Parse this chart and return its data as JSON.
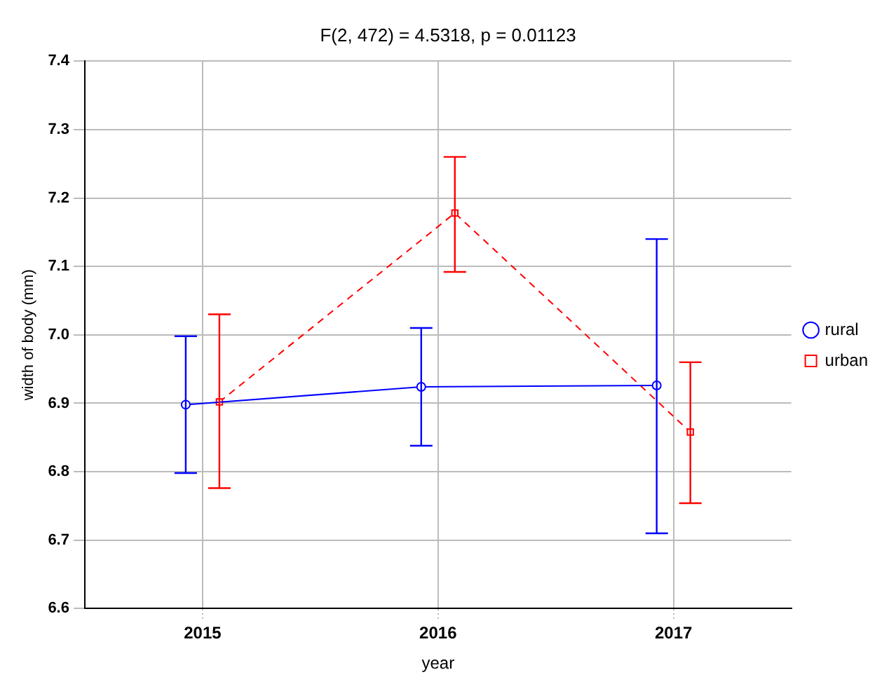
{
  "chart_data": {
    "type": "line",
    "title": "F(2, 472) = 4.5318, p = 0.01123",
    "xlabel": "year",
    "ylabel": "width of body (mm)",
    "categories": [
      "2015",
      "2016",
      "2017"
    ],
    "series": [
      {
        "name": "rural",
        "color": "#0000ff",
        "marker": "circle",
        "line_style": "solid",
        "values": [
          6.898,
          6.924,
          6.926
        ],
        "errors": [
          [
            6.798,
            6.998
          ],
          [
            6.838,
            7.01
          ],
          [
            6.71,
            7.14
          ]
        ]
      },
      {
        "name": "urban",
        "color": "#ff0000",
        "marker": "square",
        "line_style": "dashed",
        "values": [
          6.902,
          7.178,
          6.858
        ],
        "errors": [
          [
            6.776,
            7.03
          ],
          [
            7.092,
            7.26
          ],
          [
            6.754,
            6.96
          ]
        ]
      }
    ],
    "ylim": [
      6.6,
      7.4
    ],
    "yticks": [
      {
        "value": 6.6,
        "label": "6.6"
      },
      6.7,
      6.8,
      6.9,
      {
        "value": 7.0,
        "label": "7.0"
      },
      7.1,
      7.2,
      7.3,
      7.4
    ],
    "grid": true,
    "legend": "right"
  }
}
